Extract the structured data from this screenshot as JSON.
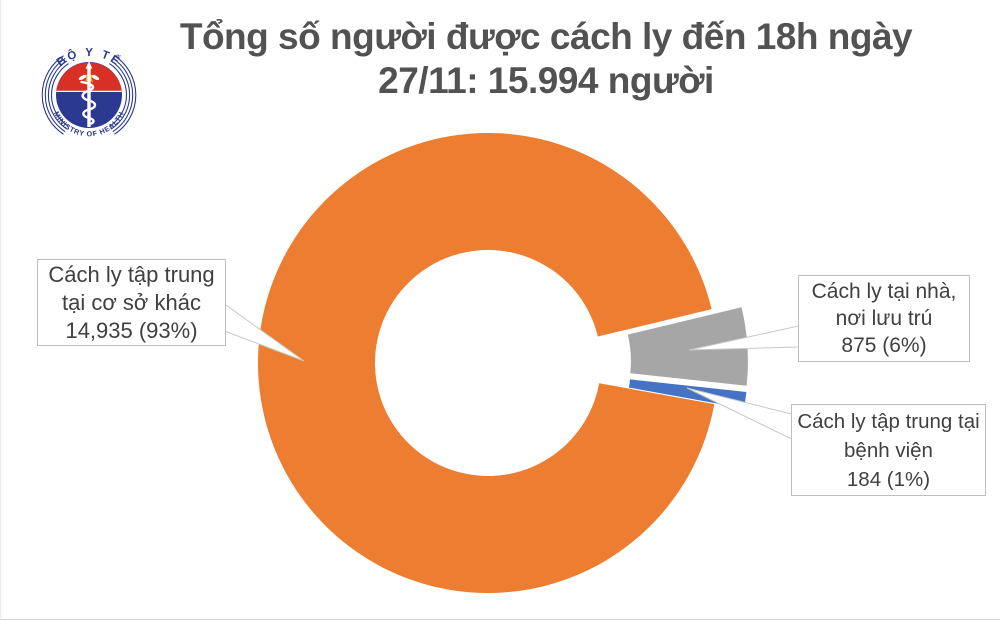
{
  "page": {
    "background": "#FFFFFF"
  },
  "logo": {
    "top_text": "BỘ Y TẾ",
    "bottom_text": "MINISTRY OF HEALTH",
    "red": "#D93025",
    "navy": "#2B3990",
    "star_gold": "#F6A81C",
    "white": "#FFFFFF"
  },
  "title": {
    "line1": "Tổng số người được cách ly đến 18h ngày",
    "line2": "27/11: 15.994 người",
    "color": "#525252"
  },
  "chart_data": {
    "type": "pie",
    "subtype": "exploded-donut",
    "title": "Tổng số người được cách ly đến 18h ngày 27/11: 15.994 người",
    "total": 15994,
    "total_display": "15.994",
    "unit": "người",
    "start_angle_deg_cw_from_north": 100.3,
    "donut_hole_ratio": 0.49,
    "legend_position": "none",
    "data_labels_style": "callout-boxes-with-leader-triangles",
    "slices": [
      {
        "name": "Cách ly tập trung tại cơ sở khác",
        "value": 14935,
        "value_display": "14,935",
        "percent": 93,
        "color": "#ED7D31",
        "exploded": false
      },
      {
        "name": "Cách ly tại nhà, nơi lưu trú",
        "value": 875,
        "value_display": "875",
        "percent": 6,
        "color": "#A6A6A6",
        "exploded": true
      },
      {
        "name": "Cách ly tập trung tại bệnh viện",
        "value": 184,
        "value_display": "184",
        "percent": 1,
        "color": "#4472C4",
        "exploded": true
      }
    ]
  },
  "callouts": {
    "left": {
      "lines": [
        "Cách ly tập trung",
        "tại cơ sở khác",
        "14,935 (93%)"
      ]
    },
    "right_top": {
      "lines": [
        "Cách ly tại nhà,",
        "nơi lưu trú",
        "875 (6%)"
      ]
    },
    "right_bottom": {
      "lines": [
        "Cách ly tập trung tại",
        "bệnh viện",
        "184 (1%)"
      ]
    }
  }
}
